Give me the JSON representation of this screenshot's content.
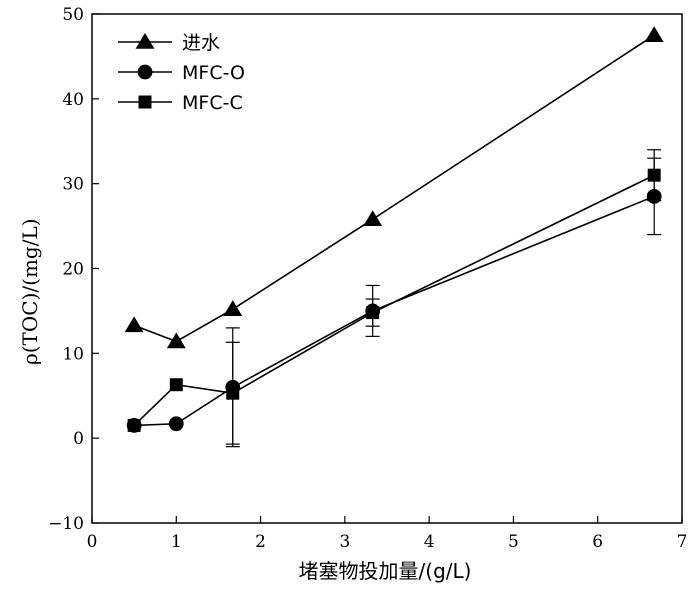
{
  "chart_data": {
    "type": "line",
    "xlabel": "堵塞物投加量/(g/L)",
    "ylabel": "ρ(TOC)/(mg/L)",
    "xlim": [
      0,
      7
    ],
    "ylim": [
      -10,
      50
    ],
    "xticks": [
      0,
      1,
      2,
      3,
      4,
      5,
      6,
      7
    ],
    "yticks": [
      -10,
      0,
      10,
      20,
      30,
      40,
      50
    ],
    "grid": false,
    "legend_position": "top-left",
    "x": [
      0.5,
      1.0,
      1.67,
      3.33,
      6.67
    ],
    "series": [
      {
        "name": "进水",
        "marker": "triangle",
        "values": [
          13.3,
          11.4,
          15.2,
          25.8,
          47.5
        ],
        "errors": [
          null,
          null,
          null,
          null,
          null
        ]
      },
      {
        "name": "MFC-O",
        "marker": "circle",
        "values": [
          1.5,
          1.7,
          6.0,
          15.0,
          28.5
        ],
        "errors": [
          null,
          null,
          7.0,
          3.0,
          4.5
        ]
      },
      {
        "name": "MFC-C",
        "marker": "square",
        "values": [
          1.5,
          6.3,
          5.3,
          14.8,
          31.0
        ],
        "errors": [
          null,
          null,
          6.0,
          1.6,
          3.0
        ]
      }
    ]
  }
}
